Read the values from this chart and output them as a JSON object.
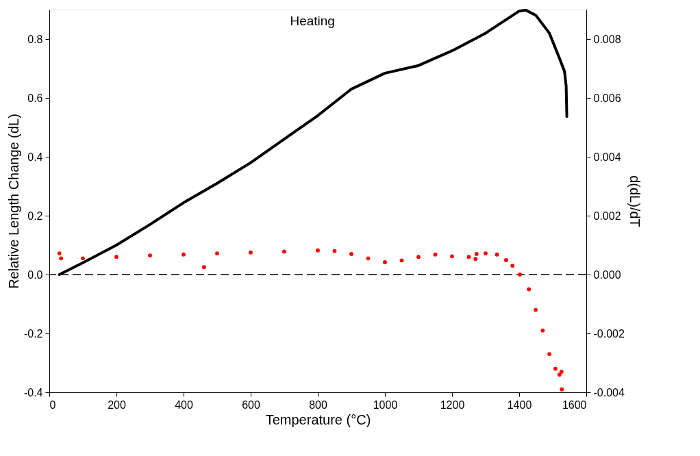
{
  "chart_data": {
    "type": "scatter",
    "xlabel": "Temperature (°C)",
    "ylabel": "Relative Length Change (dL)",
    "y2label": "d(dL)/dT",
    "annotations": [
      "Heating"
    ],
    "xlim": [
      0,
      1600
    ],
    "xticks": [
      0,
      200,
      400,
      600,
      800,
      1000,
      1200,
      1400,
      1600
    ],
    "ylim": [
      -0.4,
      0.9
    ],
    "yticks": [
      -0.4,
      -0.2,
      {
        "value": 0,
        "label": "0.0"
      },
      0.2,
      0.4,
      0.6,
      0.8
    ],
    "y2lim": [
      -0.004,
      0.009
    ],
    "y2ticks": [
      -0.004,
      -0.002,
      {
        "value": 0,
        "label": "0.000"
      },
      0.002,
      0.004,
      0.006,
      0.008
    ],
    "grid": false,
    "ref_lines": [
      {
        "axis": "y",
        "value": 0,
        "color": "#000000",
        "line_style": "dashed"
      }
    ],
    "series": [
      {
        "type": "line",
        "color": "#000000",
        "marker": "none",
        "line_style": "solid",
        "x": [
          30,
          100,
          200,
          300,
          400,
          500,
          600,
          700,
          800,
          900,
          1000,
          1100,
          1200,
          1300,
          1400,
          1420,
          1450,
          1490,
          1520,
          1535,
          1540,
          1542
        ],
        "values": [
          0.0,
          0.04,
          0.1,
          0.17,
          0.244,
          0.31,
          0.38,
          0.46,
          0.54,
          0.63,
          0.684,
          0.71,
          0.76,
          0.82,
          0.895,
          0.898,
          0.88,
          0.82,
          0.735,
          0.69,
          0.64,
          0.537
        ]
      },
      {
        "axis": "y2",
        "color": "#ff0000",
        "marker": "circle",
        "x": [
          30,
          35,
          100,
          200,
          300,
          400,
          461,
          500,
          600,
          700,
          800,
          850,
          900,
          950,
          1000,
          1050,
          1100,
          1150,
          1200,
          1250,
          1270,
          1273,
          1300,
          1334,
          1361,
          1380,
          1402,
          1429,
          1449,
          1470,
          1490,
          1508,
          1520,
          1526,
          1527
        ],
        "values": [
          0.00072,
          0.00055,
          0.00055,
          0.0006,
          0.00065,
          0.00068,
          0.00025,
          0.00072,
          0.00075,
          0.00078,
          0.00082,
          0.0008,
          0.0007,
          0.00055,
          0.00042,
          0.00048,
          0.0006,
          0.00068,
          0.00062,
          0.0006,
          0.00053,
          0.0007,
          0.00072,
          0.00068,
          0.00049,
          0.0003,
          0.0,
          -0.0005,
          -0.0012,
          -0.0019,
          -0.0027,
          -0.0032,
          -0.0034,
          -0.0033,
          -0.0039
        ]
      }
    ]
  }
}
